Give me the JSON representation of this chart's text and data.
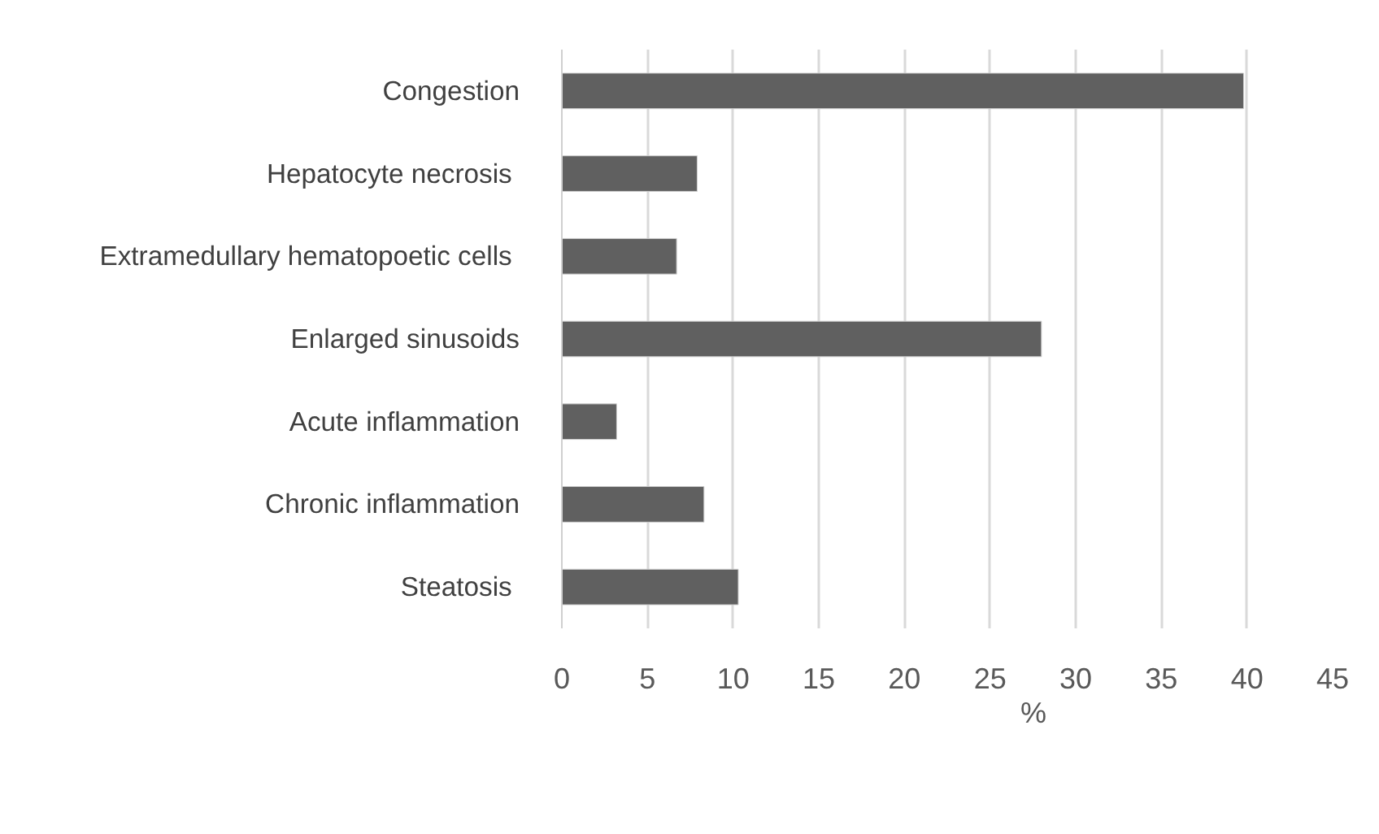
{
  "chart_data": {
    "type": "bar",
    "orientation": "horizontal",
    "xlabel": "%",
    "categories": [
      "Congestion",
      "Hepatocyte necrosis ",
      "Extramedullary hematopoetic cells ",
      "Enlarged sinusoids",
      "Acute inflammation",
      "Chronic inflammation",
      "Steatosis "
    ],
    "values": [
      39.8,
      7.9,
      6.7,
      28.0,
      3.2,
      8.3,
      10.3
    ],
    "color": "#606060",
    "xlim": [
      0,
      45
    ],
    "xticks": [
      0,
      5,
      10,
      15,
      20,
      25,
      30,
      35,
      40,
      45
    ],
    "grid": "x"
  }
}
